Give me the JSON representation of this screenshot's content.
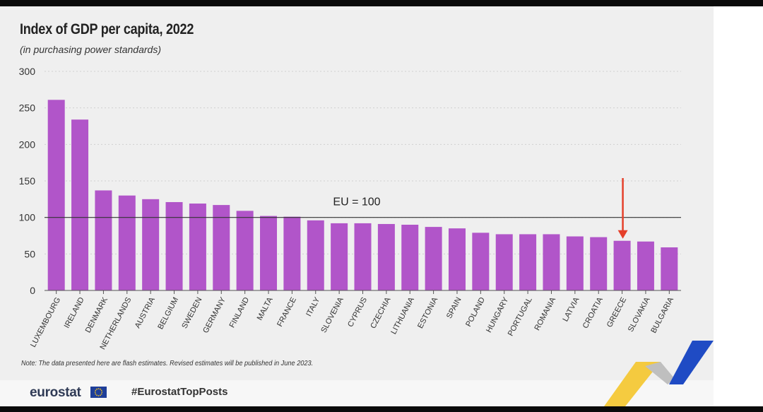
{
  "header": {
    "title": "Index of GDP per capita, 2022",
    "subtitle": "(in purchasing power standards)"
  },
  "chart_data": {
    "type": "bar",
    "title": "Index of GDP per capita, 2022",
    "subtitle": "(in purchasing power standards)",
    "categories": [
      "LUXEMBOURG",
      "IRELAND",
      "DENMARK",
      "NETHERLANDS",
      "AUSTRIA",
      "BELGIUM",
      "SWEDEN",
      "GERMANY",
      "FINLAND",
      "MALTA",
      "FRANCE",
      "ITALY",
      "SLOVENIA",
      "CYPRUS",
      "CZECHIA",
      "LITHUANIA",
      "ESTONIA",
      "SPAIN",
      "POLAND",
      "HUNGARY",
      "PORTUGAL",
      "ROMANIA",
      "LATVIA",
      "CROATIA",
      "GREECE",
      "SLOVAKIA",
      "BULGARIA"
    ],
    "values": [
      261,
      234,
      137,
      130,
      125,
      121,
      119,
      117,
      109,
      102,
      101,
      96,
      92,
      92,
      91,
      90,
      87,
      85,
      79,
      77,
      77,
      77,
      74,
      73,
      68,
      67,
      59
    ],
    "ylim": [
      0,
      300
    ],
    "yticks": [
      0,
      50,
      100,
      150,
      200,
      250,
      300
    ],
    "grid": true,
    "bar_color": "#b155c9",
    "reference_line": {
      "value": 100,
      "label": "EU = 100"
    },
    "highlight": {
      "category": "GREECE",
      "marker": "arrow",
      "color": "#e5402a"
    }
  },
  "footer": {
    "note": "Note: The data presented here are flash estimates. Revised estimates will be published in June 2023.",
    "brand": "eurostat",
    "hashtag": "#EurostatTopPosts"
  },
  "colors": {
    "background": "#efefef",
    "bar": "#b155c9",
    "arrow": "#e5402a",
    "deco_blue": "#1f4bc4",
    "deco_yellow": "#f5c320"
  }
}
